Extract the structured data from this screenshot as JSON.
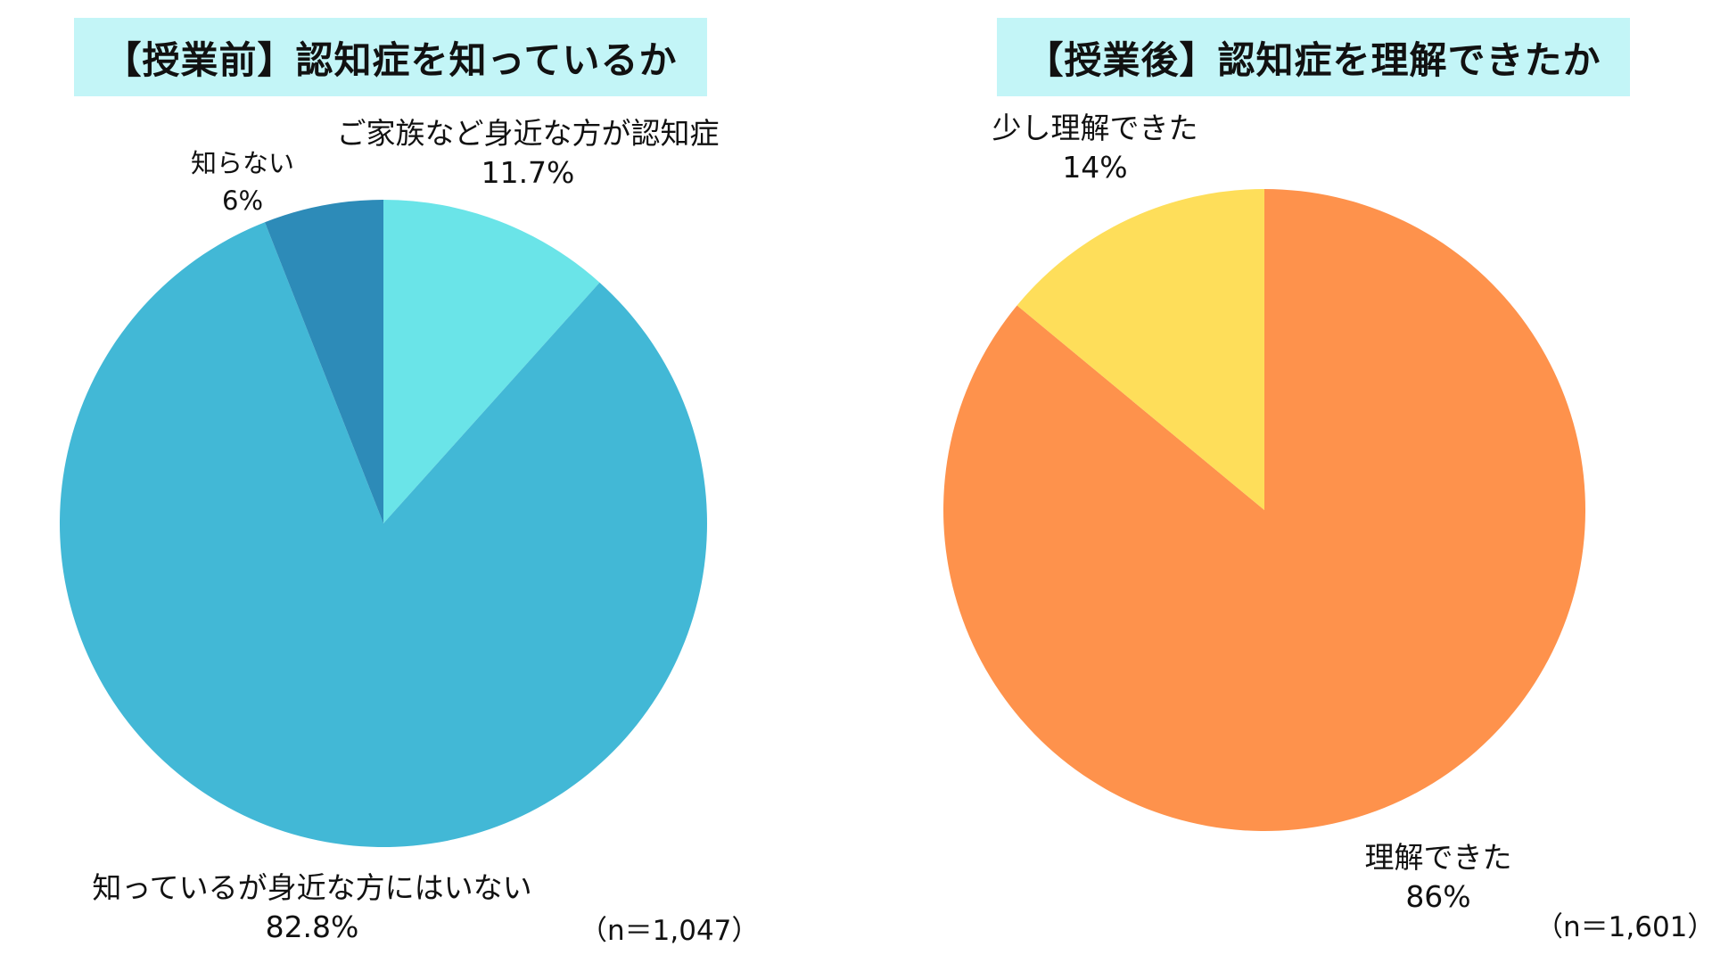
{
  "chart_data": [
    {
      "type": "pie",
      "title": "【授業前】認知症を知っているか",
      "note": "（n＝1,047）",
      "slices": [
        {
          "label": "ご家族など身近な方が認知症",
          "value": 11.7,
          "value_label": "11.7%",
          "color": "#6ae4e8"
        },
        {
          "label": "知っているが身近な方にはいない",
          "value": 82.8,
          "value_label": "82.8%",
          "color": "#42b8d6"
        },
        {
          "label": "知らない",
          "value": 6,
          "value_label": "6%",
          "color": "#2d8bb8"
        }
      ]
    },
    {
      "type": "pie",
      "title": "【授業後】認知症を理解できたか",
      "note": "（n＝1,601）",
      "slices": [
        {
          "label": "理解できた",
          "value": 86,
          "value_label": "86%",
          "color": "#fe924c"
        },
        {
          "label": "少し理解できた",
          "value": 14,
          "value_label": "14%",
          "color": "#fede5a"
        }
      ]
    }
  ]
}
